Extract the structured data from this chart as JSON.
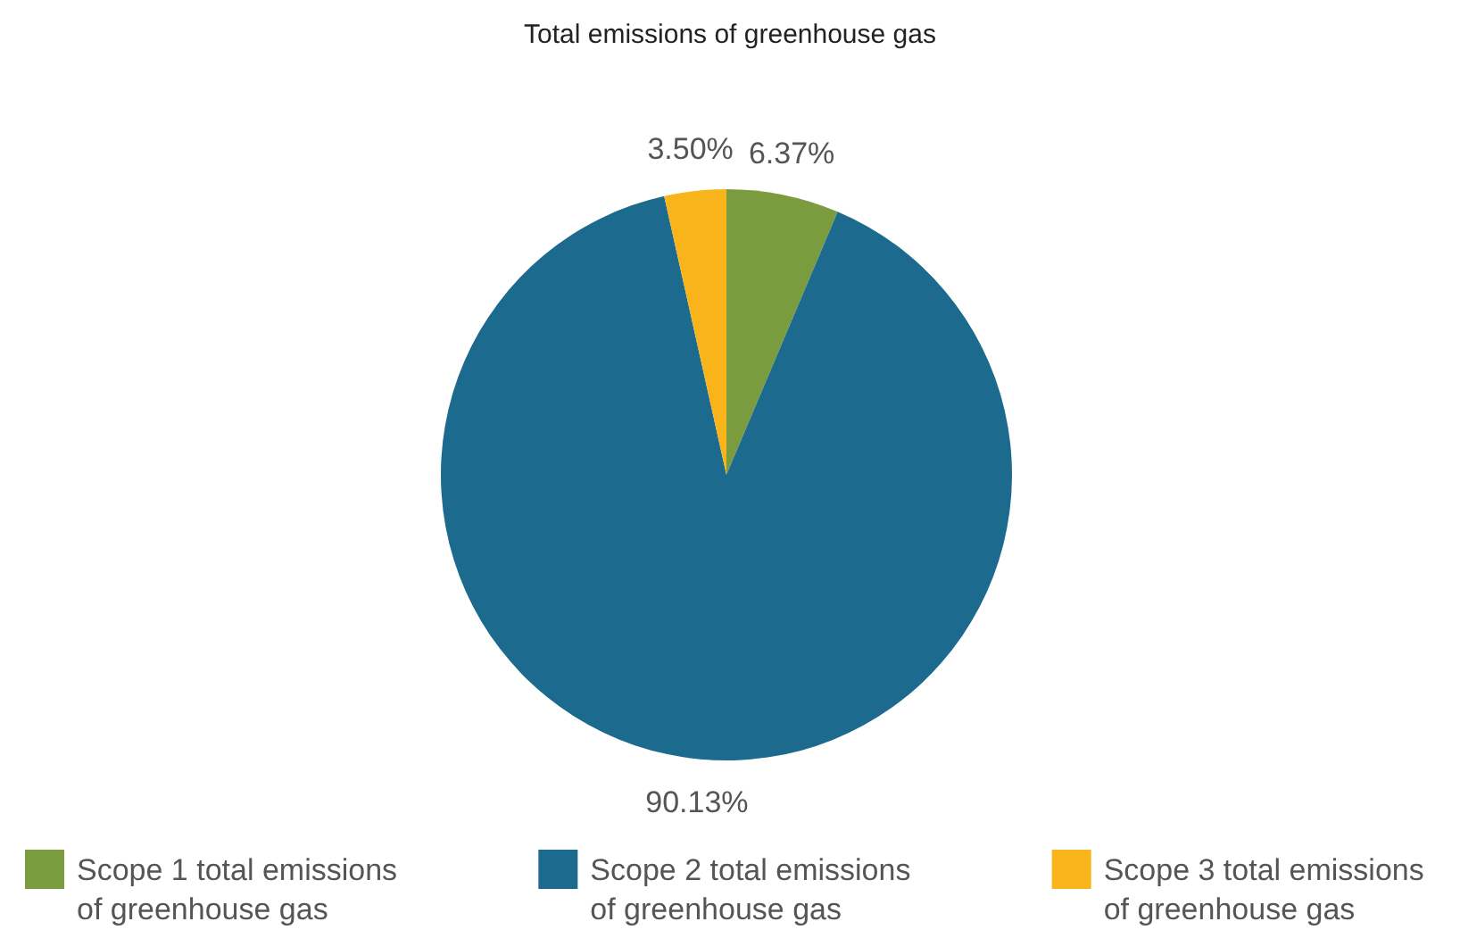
{
  "chart_data": {
    "type": "pie",
    "title": "Total emissions of greenhouse gas",
    "categories": [
      "Scope 1 total emissions of greenhouse gas",
      "Scope 2 total emissions of greenhouse gas",
      "Scope 3 total emissions of greenhouse gas"
    ],
    "values": [
      6.37,
      90.13,
      3.5
    ],
    "colors": [
      "#7a9c3e",
      "#1c6a8e",
      "#f9b41b"
    ],
    "value_labels": [
      "6.37%",
      "90.13%",
      "3.50%"
    ],
    "legend": "bottom"
  }
}
